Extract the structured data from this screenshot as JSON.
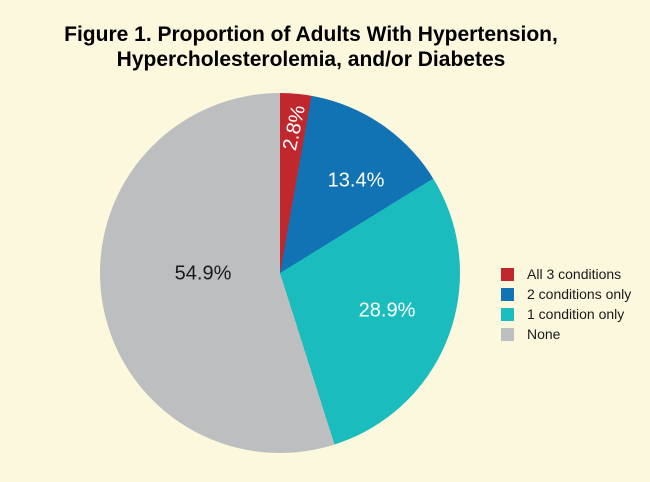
{
  "figure": {
    "title_line1": "Figure 1. Proportion of Adults With Hypertension,",
    "title_line2": "Hypercholesterolemia, and/or Diabetes"
  },
  "colors": {
    "background": "#FBF8DE",
    "title_text": "#000000",
    "dark_label_text": "#1a1a1a",
    "light_label_text": "#ffffff"
  },
  "chart_data": {
    "type": "pie",
    "title": "Figure 1. Proportion of Adults With Hypertension, Hypercholesterolemia, and/or Diabetes",
    "start_angle_deg": 0,
    "direction": "clockwise",
    "legend_position": "right",
    "slices": [
      {
        "label": "All 3 conditions",
        "value": 2.8,
        "display": "2.8%",
        "color": "#C1282E"
      },
      {
        "label": "2 conditions only",
        "value": 13.4,
        "display": "13.4%",
        "color": "#1173B4"
      },
      {
        "label": "1 condition only",
        "value": 28.9,
        "display": "28.9%",
        "color": "#1BBCBE"
      },
      {
        "label": "None",
        "value": 54.9,
        "display": "54.9%",
        "color": "#BCBEC0"
      }
    ]
  }
}
